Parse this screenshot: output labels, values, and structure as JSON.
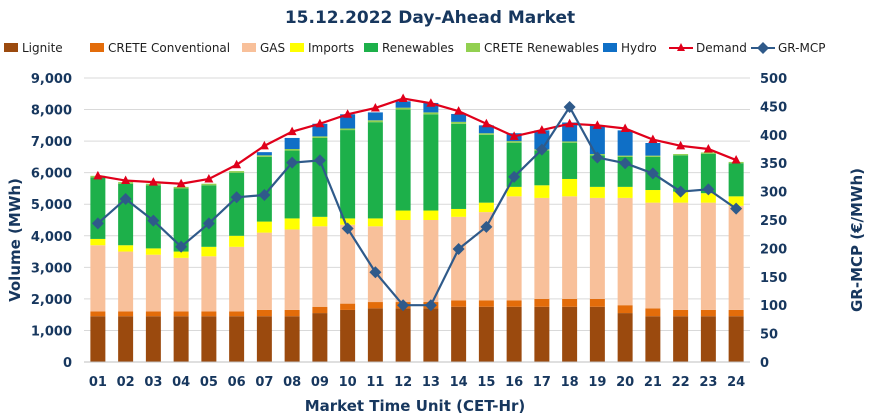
{
  "chart_data": {
    "type": "bar",
    "title": "15.12.2022  Day-Ahead Market",
    "xlabel": "Market Time Unit (CET-Hr)",
    "ylabel": "Volume (MWh)",
    "ylabel2": "GR-MCP (€/MWh)",
    "ylim": [
      0,
      9000
    ],
    "y2lim": [
      0,
      500
    ],
    "yticks": [
      "0",
      "1,000",
      "2,000",
      "3,000",
      "4,000",
      "5,000",
      "6,000",
      "7,000",
      "8,000",
      "9,000"
    ],
    "y2ticks": [
      "0",
      "50",
      "100",
      "150",
      "200",
      "250",
      "300",
      "350",
      "400",
      "450",
      "500"
    ],
    "categories": [
      "01",
      "02",
      "03",
      "04",
      "05",
      "06",
      "07",
      "08",
      "09",
      "10",
      "11",
      "12",
      "13",
      "14",
      "15",
      "16",
      "17",
      "18",
      "19",
      "20",
      "21",
      "22",
      "23",
      "24"
    ],
    "series": [
      {
        "name": "Lignite",
        "kind": "bar",
        "color": "#9B4A0E",
        "values": [
          1450,
          1450,
          1450,
          1450,
          1450,
          1450,
          1450,
          1450,
          1550,
          1650,
          1700,
          1700,
          1700,
          1750,
          1750,
          1750,
          1750,
          1750,
          1750,
          1550,
          1450,
          1450,
          1450,
          1450
        ]
      },
      {
        "name": "CRETE Conventional",
        "kind": "bar",
        "color": "#E36C0A",
        "values": [
          150,
          150,
          150,
          150,
          150,
          150,
          200,
          200,
          200,
          200,
          200,
          200,
          200,
          200,
          200,
          200,
          250,
          250,
          250,
          250,
          250,
          200,
          200,
          200
        ]
      },
      {
        "name": "GAS",
        "kind": "bar",
        "color": "#F8C09A",
        "values": [
          2100,
          1900,
          1800,
          1700,
          1750,
          2050,
          2450,
          2550,
          2550,
          2500,
          2400,
          2600,
          2600,
          2650,
          2800,
          3300,
          3200,
          3250,
          3200,
          3400,
          3350,
          3400,
          3400,
          3300
        ]
      },
      {
        "name": "Imports",
        "kind": "bar",
        "color": "#FFFF00",
        "values": [
          200,
          200,
          200,
          200,
          300,
          350,
          350,
          350,
          300,
          200,
          250,
          300,
          300,
          250,
          300,
          300,
          400,
          550,
          350,
          350,
          400,
          350,
          300,
          300
        ]
      },
      {
        "name": "Renewables",
        "kind": "bar",
        "color": "#1DB04A",
        "values": [
          1950,
          1950,
          2000,
          2000,
          1950,
          2000,
          2050,
          2150,
          2500,
          2800,
          3050,
          3200,
          3050,
          2700,
          2150,
          1400,
          1100,
          1150,
          1000,
          950,
          1050,
          1150,
          1250,
          1050
        ]
      },
      {
        "name": "CRETE Renewables",
        "kind": "bar",
        "color": "#92D050",
        "values": [
          50,
          50,
          50,
          50,
          50,
          50,
          50,
          50,
          50,
          50,
          60,
          60,
          60,
          60,
          50,
          50,
          40,
          40,
          40,
          40,
          40,
          40,
          40,
          40
        ]
      },
      {
        "name": "Hydro",
        "kind": "bar",
        "color": "#0F6FC6",
        "values": [
          0,
          0,
          0,
          0,
          0,
          0,
          100,
          350,
          400,
          450,
          250,
          200,
          300,
          250,
          250,
          250,
          600,
          600,
          900,
          800,
          400,
          0,
          0,
          0
        ]
      },
      {
        "name": "Demand",
        "kind": "line",
        "axis": "left",
        "color": "#E0001B",
        "values": [
          5900,
          5750,
          5700,
          5650,
          5800,
          6250,
          6850,
          7300,
          7550,
          7850,
          8050,
          8350,
          8200,
          7950,
          7550,
          7150,
          7350,
          7550,
          7500,
          7400,
          7050,
          6850,
          6750,
          6400
        ]
      },
      {
        "name": "GR-MCP",
        "kind": "line",
        "axis": "right",
        "color": "#2F5A8A",
        "values": [
          244,
          287,
          249,
          203,
          244,
          290,
          294,
          351,
          355,
          235,
          158,
          100,
          100,
          199,
          238,
          326,
          374,
          449,
          360,
          350,
          332,
          300,
          304,
          270
        ]
      }
    ]
  }
}
